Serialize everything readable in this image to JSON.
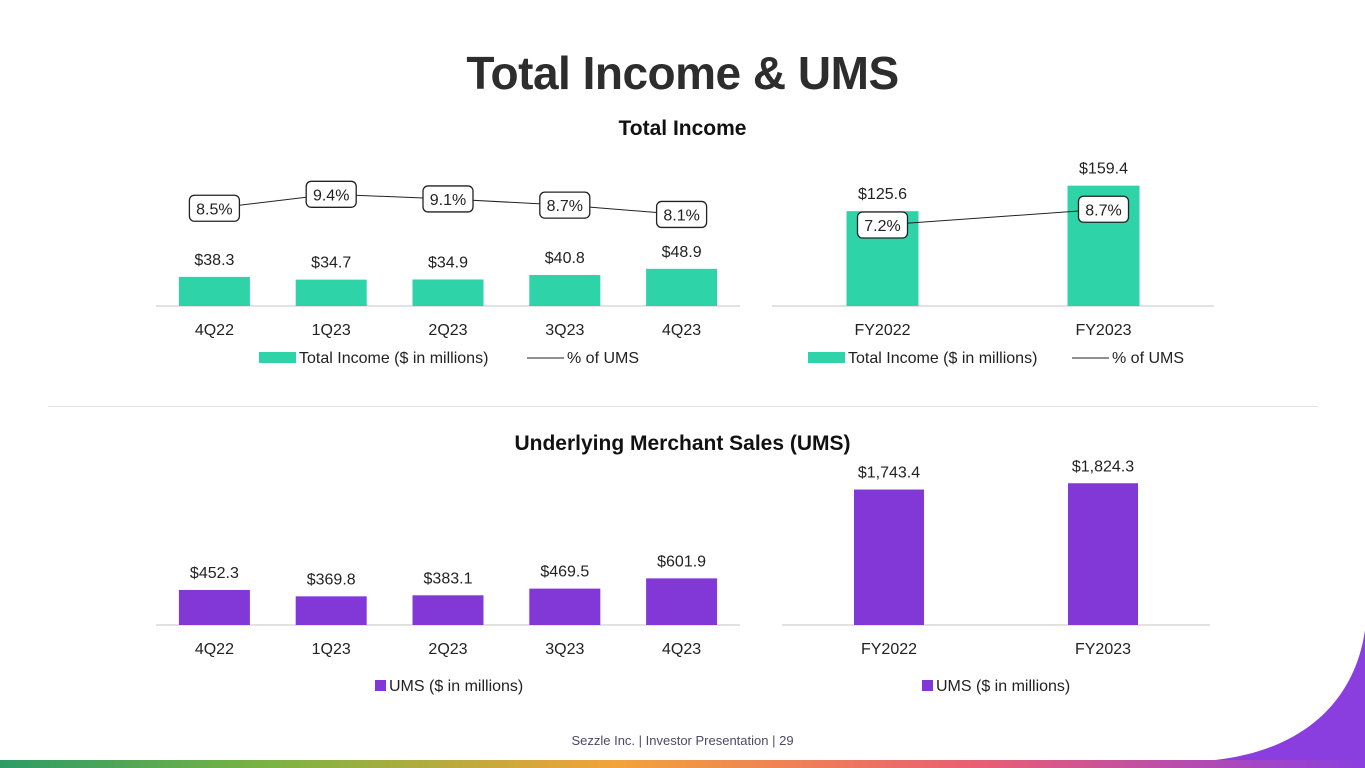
{
  "page": {
    "title": "Total Income & UMS",
    "footer": "Sezzle Inc. | Investor Presentation | 29"
  },
  "colors": {
    "income": "#2ed3a8",
    "ums": "#8138d6",
    "line": "#222222",
    "axis": "#d9d9d9"
  },
  "chart_data": [
    {
      "id": "income_quarterly",
      "type": "bar",
      "title": "Total Income",
      "categories": [
        "4Q22",
        "1Q23",
        "2Q23",
        "3Q23",
        "4Q23"
      ],
      "series": [
        {
          "name": "Total Income ($ in millions)",
          "kind": "bar",
          "values": [
            38.3,
            34.7,
            34.9,
            40.8,
            48.9
          ],
          "labels": [
            "$38.3",
            "$34.7",
            "$34.9",
            "$40.8",
            "$48.9"
          ]
        },
        {
          "name": "% of UMS",
          "kind": "line",
          "values": [
            8.5,
            9.4,
            9.1,
            8.7,
            8.1
          ],
          "labels": [
            "8.5%",
            "9.4%",
            "9.1%",
            "8.7%",
            "8.1%"
          ]
        }
      ],
      "legend": "bottom"
    },
    {
      "id": "income_annual",
      "type": "bar",
      "categories": [
        "FY2022",
        "FY2023"
      ],
      "series": [
        {
          "name": "Total Income ($ in millions)",
          "kind": "bar",
          "values": [
            125.6,
            159.4
          ],
          "labels": [
            "$125.6",
            "$159.4"
          ]
        },
        {
          "name": "% of UMS",
          "kind": "line",
          "values": [
            7.2,
            8.7
          ],
          "labels": [
            "7.2%",
            "8.7%"
          ]
        }
      ],
      "legend": "bottom"
    },
    {
      "id": "ums_quarterly",
      "type": "bar",
      "title": "Underlying Merchant Sales (UMS)",
      "categories": [
        "4Q22",
        "1Q23",
        "2Q23",
        "3Q23",
        "4Q23"
      ],
      "series": [
        {
          "name": "UMS ($ in millions)",
          "kind": "bar",
          "values": [
            452.3,
            369.8,
            383.1,
            469.5,
            601.9
          ],
          "labels": [
            "$452.3",
            "$369.8",
            "$383.1",
            "$469.5",
            "$601.9"
          ]
        }
      ],
      "legend": "bottom"
    },
    {
      "id": "ums_annual",
      "type": "bar",
      "categories": [
        "FY2022",
        "FY2023"
      ],
      "series": [
        {
          "name": "UMS ($ in millions)",
          "kind": "bar",
          "values": [
            1743.4,
            1824.3
          ],
          "labels": [
            "$1,743.4",
            "$1,824.3"
          ]
        }
      ],
      "legend": "bottom"
    }
  ]
}
